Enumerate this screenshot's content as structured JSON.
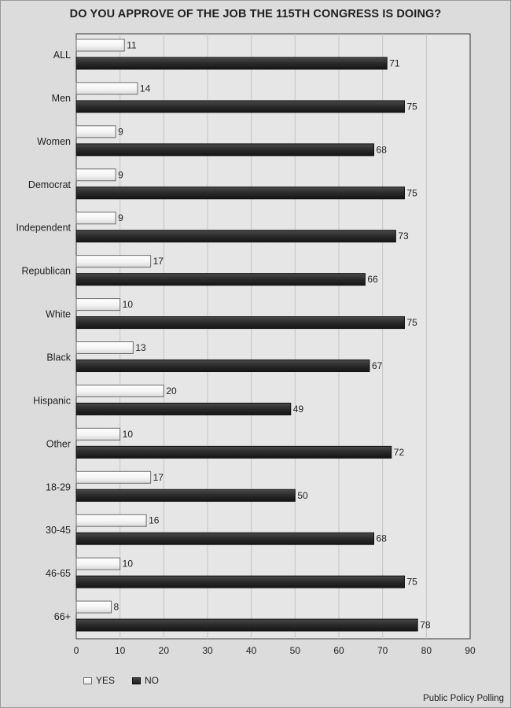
{
  "chart_data": {
    "type": "bar",
    "orientation": "horizontal",
    "title": "DO YOU APPROVE OF THE JOB THE 115TH CONGRESS IS DOING?",
    "categories": [
      "ALL",
      "Men",
      "Women",
      "Democrat",
      "Independent",
      "Republican",
      "White",
      "Black",
      "Hispanic",
      "Other",
      "18-29",
      "30-45",
      "46-65",
      "66+"
    ],
    "series": [
      {
        "name": "YES",
        "values": [
          11,
          14,
          9,
          9,
          9,
          17,
          10,
          13,
          20,
          10,
          17,
          16,
          10,
          8
        ],
        "color": "#ffffff"
      },
      {
        "name": "NO",
        "values": [
          71,
          75,
          68,
          75,
          73,
          66,
          75,
          67,
          49,
          72,
          50,
          68,
          75,
          78
        ],
        "color": "#2b2b2b"
      }
    ],
    "xlim": [
      0,
      90
    ],
    "xticks": [
      0,
      10,
      20,
      30,
      40,
      50,
      60,
      70,
      80,
      90
    ],
    "grid": true,
    "legend_position": "bottom-left",
    "data_labels": true
  },
  "source": "Public Policy Polling"
}
